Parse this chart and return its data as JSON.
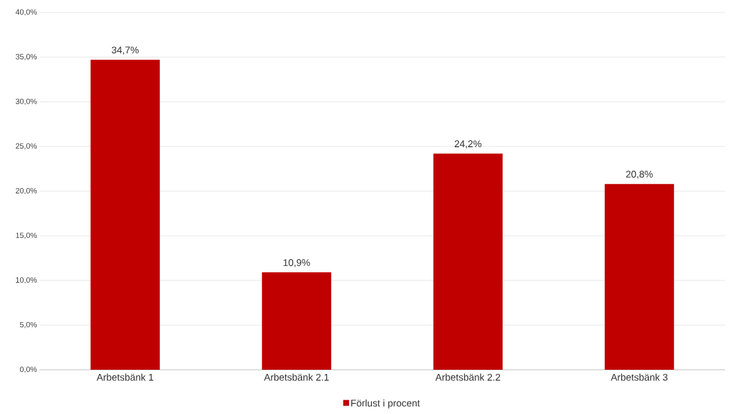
{
  "chart_data": {
    "type": "bar",
    "categories": [
      "Arbetsbänk 1",
      "Arbetsbänk 2.1",
      "Arbetsbänk 2.2",
      "Arbetsbänk 3"
    ],
    "series": [
      {
        "name": "Förlust i procent",
        "color": "#c00000",
        "values": [
          34.7,
          10.9,
          24.2,
          20.8
        ],
        "value_labels": [
          "34,7%",
          "10,9%",
          "24,2%",
          "20,8%"
        ]
      }
    ],
    "ylim": [
      0,
      40
    ],
    "yticks": [
      {
        "value": 0,
        "label": "0,0%"
      },
      {
        "value": 5,
        "label": "5,0%"
      },
      {
        "value": 10,
        "label": "10,0%"
      },
      {
        "value": 15,
        "label": "15,0%"
      },
      {
        "value": 20,
        "label": "20,0%"
      },
      {
        "value": 25,
        "label": "25,0%"
      },
      {
        "value": 30,
        "label": "30,0%"
      },
      {
        "value": 35,
        "label": "35,0%"
      },
      {
        "value": 40,
        "label": "40,0%"
      }
    ],
    "grid": "y",
    "legend": "bottom"
  }
}
